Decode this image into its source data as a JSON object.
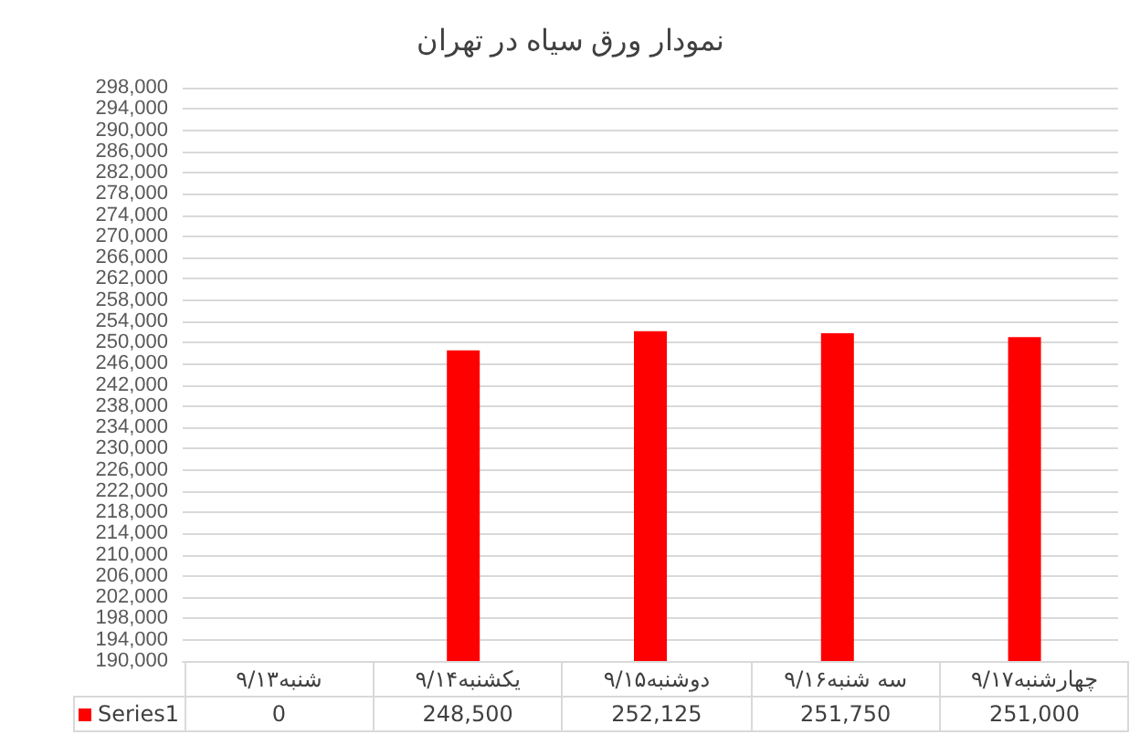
{
  "chart_data": {
    "type": "bar",
    "title": "نمودار ورق سیاه در تهران",
    "categories": [
      "شنبه۹/۱۳",
      "یکشنبه۹/۱۴",
      "دوشنبه۹/۱۵",
      "سه شنبه۹/۱۶",
      "چهارشنبه۹/۱۷"
    ],
    "series": [
      {
        "name": "Series1",
        "color": "#ff0000",
        "values": [
          null,
          248500,
          252125,
          251750,
          251000
        ],
        "value_labels": [
          "0",
          "248,500",
          "252,125",
          "251,750",
          "251,000"
        ]
      }
    ],
    "ylim": [
      190000,
      298000
    ],
    "yticks": [
      {
        "value": 190000,
        "label": "190,000"
      },
      {
        "value": 194000,
        "label": "194,000"
      },
      {
        "value": 198000,
        "label": "198,000"
      },
      {
        "value": 202000,
        "label": "202,000"
      },
      {
        "value": 206000,
        "label": "206,000"
      },
      {
        "value": 210000,
        "label": "210,000"
      },
      {
        "value": 214000,
        "label": "214,000"
      },
      {
        "value": 218000,
        "label": "218,000"
      },
      {
        "value": 222000,
        "label": "222,000"
      },
      {
        "value": 226000,
        "label": "226,000"
      },
      {
        "value": 230000,
        "label": "230,000"
      },
      {
        "value": 234000,
        "label": "234,000"
      },
      {
        "value": 238000,
        "label": "238,000"
      },
      {
        "value": 242000,
        "label": "242,000"
      },
      {
        "value": 246000,
        "label": "246,000"
      },
      {
        "value": 250000,
        "label": "250,000"
      },
      {
        "value": 254000,
        "label": "254,000"
      },
      {
        "value": 258000,
        "label": "258,000"
      },
      {
        "value": 262000,
        "label": "262,000"
      },
      {
        "value": 266000,
        "label": "266,000"
      },
      {
        "value": 270000,
        "label": "270,000"
      },
      {
        "value": 274000,
        "label": "274,000"
      },
      {
        "value": 278000,
        "label": "278,000"
      },
      {
        "value": 282000,
        "label": "282,000"
      },
      {
        "value": 286000,
        "label": "286,000"
      },
      {
        "value": 290000,
        "label": "290,000"
      },
      {
        "value": 294000,
        "label": "294,000"
      },
      {
        "value": 298000,
        "label": "298,000"
      }
    ],
    "grid": "y",
    "legend": "bottom"
  }
}
